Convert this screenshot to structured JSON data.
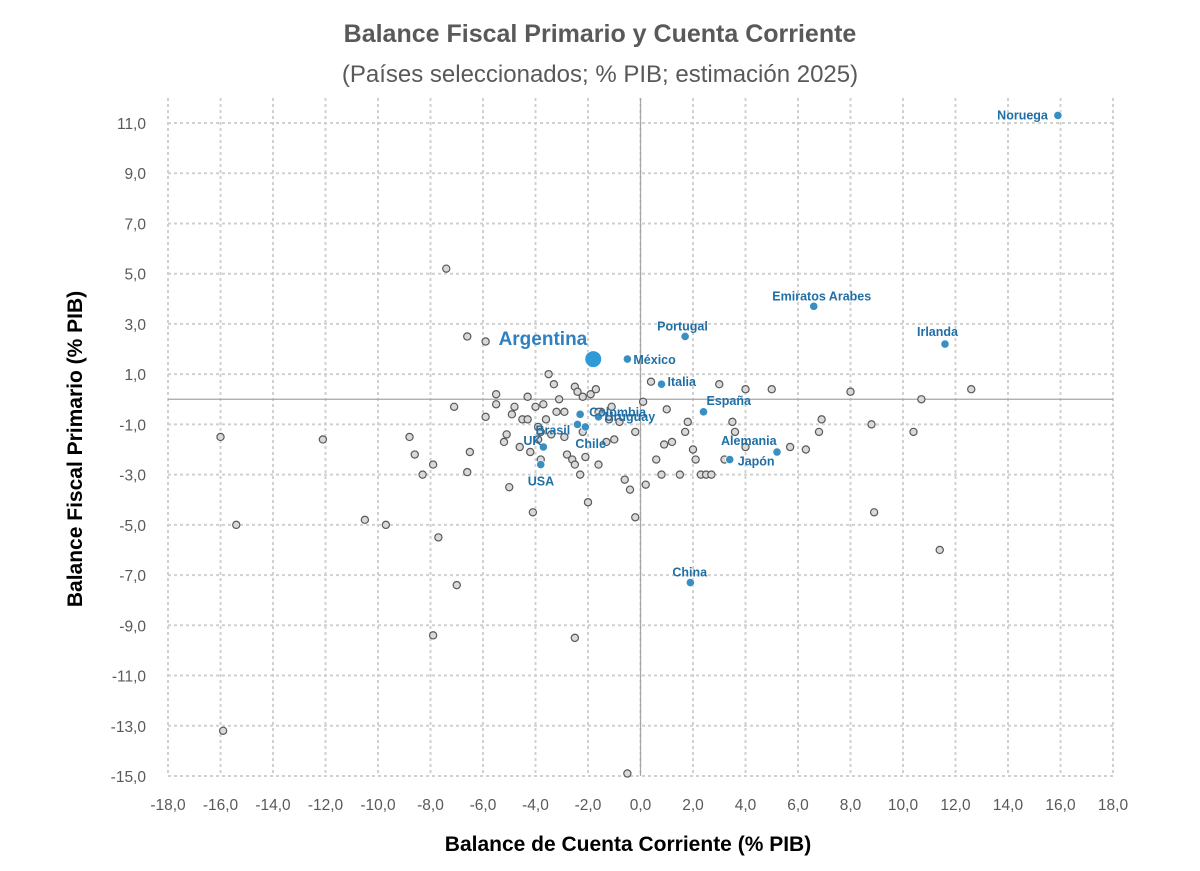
{
  "chart_data": {
    "type": "scatter",
    "title": "Balance Fiscal Primario y Cuenta Corriente",
    "subtitle": "(Países seleccionados; % PIB; estimación 2025)",
    "xlabel": "Balance de Cuenta Corriente (% PIB)",
    "ylabel": "Balance Fiscal Primario (% PIB)",
    "xlim": [
      -18,
      18
    ],
    "ylim": [
      -15,
      12
    ],
    "x_ticks": [
      -18,
      -16,
      -14,
      -12,
      -10,
      -8,
      -6,
      -4,
      -2,
      0,
      2,
      4,
      6,
      8,
      10,
      12,
      14,
      16,
      18
    ],
    "y_ticks": [
      -15,
      -13,
      -11,
      -9,
      -7,
      -5,
      -3,
      -1,
      1,
      3,
      5,
      7,
      9,
      11
    ],
    "x_tick_labels": [
      "-18,0",
      "-16,0",
      "-14,0",
      "-12,0",
      "-10,0",
      "-8,0",
      "-6,0",
      "-4,0",
      "-2,0",
      "0,0",
      "2,0",
      "4,0",
      "6,0",
      "8,0",
      "10,0",
      "12,0",
      "14,0",
      "16,0",
      "18,0"
    ],
    "y_tick_labels": [
      "-15,0",
      "-13,0",
      "-11,0",
      "-9,0",
      "-7,0",
      "-5,0",
      "-3,0",
      "-1,0",
      "1,0",
      "3,0",
      "5,0",
      "7,0",
      "9,0",
      "11,0"
    ],
    "grid": true,
    "highlighted": [
      {
        "name": "Argentina",
        "x": -1.8,
        "y": 1.6,
        "main": true
      },
      {
        "name": "Noruega",
        "x": 15.9,
        "y": 11.3
      },
      {
        "name": "Emiratos Arabes",
        "x": 6.6,
        "y": 3.7
      },
      {
        "name": "Portugal",
        "x": 1.7,
        "y": 2.5
      },
      {
        "name": "Irlanda",
        "x": 11.6,
        "y": 2.2
      },
      {
        "name": "México",
        "x": -0.5,
        "y": 1.6
      },
      {
        "name": "Italia",
        "x": 0.8,
        "y": 0.6
      },
      {
        "name": "España",
        "x": 2.4,
        "y": -0.5
      },
      {
        "name": "Colombia",
        "x": -2.3,
        "y": -0.6
      },
      {
        "name": "Brasil",
        "x": -2.4,
        "y": -1.0
      },
      {
        "name": "Uruguay",
        "x": -1.6,
        "y": -0.7
      },
      {
        "name": "Chile",
        "x": -2.1,
        "y": -1.1
      },
      {
        "name": "UK",
        "x": -3.7,
        "y": -1.9
      },
      {
        "name": "USA",
        "x": -3.8,
        "y": -2.6
      },
      {
        "name": "Alemania",
        "x": 5.2,
        "y": -2.1
      },
      {
        "name": "Japón",
        "x": 3.4,
        "y": -2.4
      },
      {
        "name": "China",
        "x": 1.9,
        "y": -7.3
      }
    ],
    "others": [
      [
        -16.0,
        -1.5
      ],
      [
        -15.9,
        -13.2
      ],
      [
        -15.4,
        -5.0
      ],
      [
        -12.1,
        -1.6
      ],
      [
        -10.5,
        -4.8
      ],
      [
        -9.7,
        -5.0
      ],
      [
        -8.8,
        -1.5
      ],
      [
        -8.6,
        -2.2
      ],
      [
        -8.3,
        -3.0
      ],
      [
        -7.9,
        -2.6
      ],
      [
        -7.7,
        -5.5
      ],
      [
        -7.4,
        5.2
      ],
      [
        -7.1,
        -0.3
      ],
      [
        -7.0,
        -7.4
      ],
      [
        -7.9,
        -9.4
      ],
      [
        -6.6,
        2.5
      ],
      [
        -6.5,
        -2.1
      ],
      [
        -6.6,
        -2.9
      ],
      [
        -5.9,
        2.3
      ],
      [
        -5.9,
        -0.7
      ],
      [
        -5.5,
        0.2
      ],
      [
        -5.5,
        -0.2
      ],
      [
        -5.2,
        -1.7
      ],
      [
        -5.1,
        -1.4
      ],
      [
        -4.9,
        -0.6
      ],
      [
        -4.8,
        -0.3
      ],
      [
        -4.6,
        -1.9
      ],
      [
        -4.5,
        -0.8
      ],
      [
        -4.3,
        0.1
      ],
      [
        -4.2,
        -2.1
      ],
      [
        -4.0,
        -0.3
      ],
      [
        -3.9,
        -1.1
      ],
      [
        -3.9,
        -1.6
      ],
      [
        -3.7,
        -0.2
      ],
      [
        -3.6,
        -0.8
      ],
      [
        -3.5,
        1.0
      ],
      [
        -3.4,
        -1.4
      ],
      [
        -3.3,
        0.6
      ],
      [
        -3.2,
        -0.5
      ],
      [
        -3.1,
        0.0
      ],
      [
        -2.9,
        -0.5
      ],
      [
        -2.8,
        -2.2
      ],
      [
        -2.6,
        -2.4
      ],
      [
        -2.5,
        -2.6
      ],
      [
        -2.5,
        0.5
      ],
      [
        -2.4,
        0.3
      ],
      [
        -2.2,
        0.1
      ],
      [
        -2.2,
        -1.3
      ],
      [
        -2.1,
        -2.3
      ],
      [
        -2.3,
        -3.0
      ],
      [
        -2.0,
        -4.1
      ],
      [
        -1.9,
        0.2
      ],
      [
        -1.7,
        0.4
      ],
      [
        -1.6,
        -2.6
      ],
      [
        -1.5,
        -0.5
      ],
      [
        -1.3,
        -1.7
      ],
      [
        -1.2,
        -0.8
      ],
      [
        -1.0,
        -1.6
      ],
      [
        -0.8,
        -0.9
      ],
      [
        -0.6,
        -3.2
      ],
      [
        -0.4,
        -3.6
      ],
      [
        -0.2,
        -1.3
      ],
      [
        -0.2,
        -4.7
      ],
      [
        0.2,
        -3.4
      ],
      [
        0.4,
        0.7
      ],
      [
        0.6,
        -2.4
      ],
      [
        0.8,
        -3.0
      ],
      [
        0.9,
        -1.8
      ],
      [
        1.0,
        -0.4
      ],
      [
        1.2,
        -1.7
      ],
      [
        1.5,
        -3.0
      ],
      [
        1.7,
        -1.3
      ],
      [
        1.8,
        -0.9
      ],
      [
        2.0,
        -2.0
      ],
      [
        2.1,
        -2.4
      ],
      [
        2.3,
        -3.0
      ],
      [
        2.5,
        -3.0
      ],
      [
        2.7,
        -3.0
      ],
      [
        3.0,
        0.6
      ],
      [
        3.2,
        -2.4
      ],
      [
        3.5,
        -0.9
      ],
      [
        3.6,
        -1.3
      ],
      [
        4.0,
        0.4
      ],
      [
        4.0,
        -1.9
      ],
      [
        5.0,
        0.4
      ],
      [
        5.7,
        -1.9
      ],
      [
        6.3,
        -2.0
      ],
      [
        6.9,
        -0.8
      ],
      [
        8.0,
        0.3
      ],
      [
        8.8,
        -1.0
      ],
      [
        8.9,
        -4.5
      ],
      [
        10.4,
        -1.3
      ],
      [
        10.7,
        0.0
      ],
      [
        11.4,
        -6.0
      ],
      [
        12.6,
        0.4
      ],
      [
        6.8,
        -1.3
      ],
      [
        -0.5,
        -14.9
      ],
      [
        -2.5,
        -9.5
      ],
      [
        -4.1,
        -4.5
      ],
      [
        -5.0,
        -3.5
      ],
      [
        -3.8,
        -2.4
      ],
      [
        -1.6,
        -0.5
      ],
      [
        0.1,
        -0.1
      ],
      [
        -1.1,
        -0.3
      ],
      [
        -2.9,
        -1.5
      ],
      [
        -4.3,
        -0.8
      ],
      [
        -3.8,
        -1.3
      ]
    ]
  }
}
